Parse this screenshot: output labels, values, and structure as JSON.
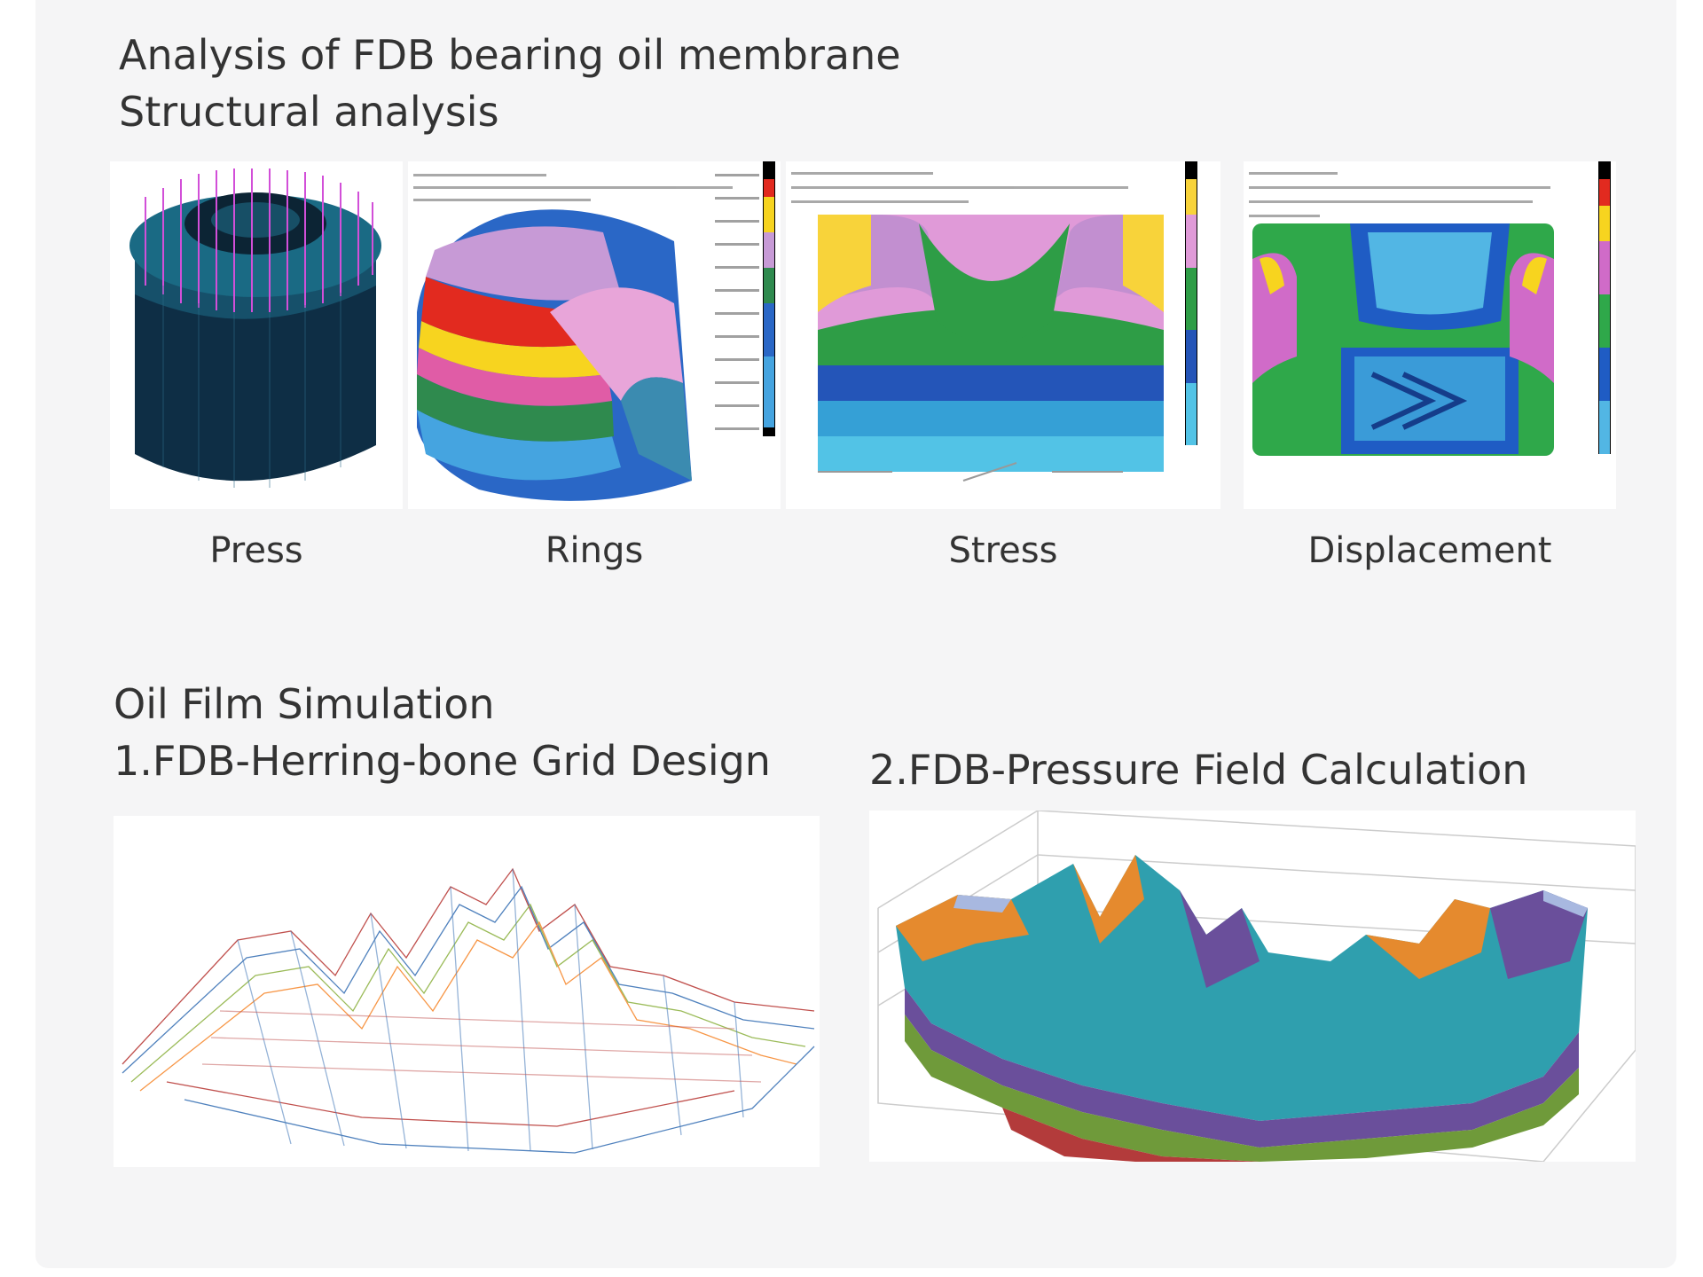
{
  "structural": {
    "title_line1": "Analysis of FDB bearing oil membrane",
    "title_line2": "Structural analysis",
    "figures": [
      {
        "caption": "Press"
      },
      {
        "caption": "Rings"
      },
      {
        "caption": "Stress"
      },
      {
        "caption": "Displacement"
      }
    ]
  },
  "oil_film": {
    "title_line1": "Oil Film Simulation",
    "title_line2": "1.FDB-Herring-bone Grid Design",
    "title_right": "2.FDB-Pressure Field Calculation"
  },
  "colors": {
    "panel": "#f5f5f6",
    "text": "#333333"
  }
}
